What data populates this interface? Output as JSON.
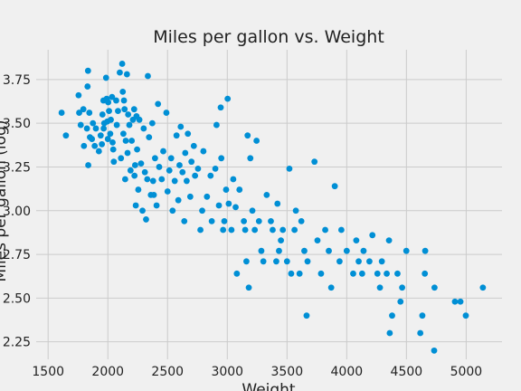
{
  "chart_data": {
    "type": "scatter",
    "title": "Miles per gallon vs. Weight",
    "xlabel": "Weight",
    "ylabel": "Miles per gallon (log)",
    "xlim": [
      1400,
      5300
    ],
    "ylim": [
      2.15,
      3.92
    ],
    "xticks": [
      1500,
      2000,
      2500,
      3000,
      3500,
      4000,
      4500,
      5000
    ],
    "yticks": [
      2.25,
      2.5,
      2.75,
      3.0,
      3.25,
      3.5,
      3.75
    ],
    "xtick_labels": [
      "1500",
      "2000",
      "2500",
      "3000",
      "3500",
      "4000",
      "4500",
      "5000"
    ],
    "ytick_labels": [
      "2.25",
      "2.50",
      "2.75",
      "3.00",
      "3.25",
      "3.50",
      "3.75"
    ],
    "grid": true,
    "series": [
      {
        "color": "#008fd5",
        "points": [
          [
            1613,
            3.56
          ],
          [
            1649,
            3.43
          ],
          [
            1755,
            3.66
          ],
          [
            1760,
            3.56
          ],
          [
            1773,
            3.49
          ],
          [
            1795,
            3.58
          ],
          [
            1800,
            3.37
          ],
          [
            1825,
            3.47
          ],
          [
            1830,
            3.71
          ],
          [
            1834,
            3.8
          ],
          [
            1836,
            3.26
          ],
          [
            1845,
            3.56
          ],
          [
            1850,
            3.42
          ],
          [
            1867,
            3.41
          ],
          [
            1875,
            3.5
          ],
          [
            1890,
            3.37
          ],
          [
            1900,
            3.47
          ],
          [
            1925,
            3.34
          ],
          [
            1940,
            3.43
          ],
          [
            1950,
            3.38
          ],
          [
            1955,
            3.55
          ],
          [
            1963,
            3.63
          ],
          [
            1965,
            3.47
          ],
          [
            1970,
            3.5
          ],
          [
            1985,
            3.76
          ],
          [
            1990,
            3.64
          ],
          [
            1995,
            3.51
          ],
          [
            2000,
            3.41
          ],
          [
            2003,
            3.62
          ],
          [
            2010,
            3.57
          ],
          [
            2020,
            3.44
          ],
          [
            2025,
            3.52
          ],
          [
            2035,
            3.65
          ],
          [
            2040,
            3.39
          ],
          [
            2045,
            3.35
          ],
          [
            2050,
            3.28
          ],
          [
            2070,
            3.63
          ],
          [
            2075,
            3.49
          ],
          [
            2085,
            3.57
          ],
          [
            2100,
            3.79
          ],
          [
            2110,
            3.3
          ],
          [
            2120,
            3.84
          ],
          [
            2125,
            3.68
          ],
          [
            2130,
            3.44
          ],
          [
            2135,
            3.63
          ],
          [
            2140,
            3.58
          ],
          [
            2145,
            3.18
          ],
          [
            2150,
            3.4
          ],
          [
            2160,
            3.78
          ],
          [
            2165,
            3.33
          ],
          [
            2170,
            3.55
          ],
          [
            2180,
            3.49
          ],
          [
            2190,
            3.23
          ],
          [
            2200,
            3.4
          ],
          [
            2210,
            3.52
          ],
          [
            2220,
            3.58
          ],
          [
            2223,
            3.2
          ],
          [
            2228,
            3.26
          ],
          [
            2234,
            3.03
          ],
          [
            2240,
            3.54
          ],
          [
            2245,
            3.35
          ],
          [
            2255,
            3.12
          ],
          [
            2264,
            3.52
          ],
          [
            2278,
            3.27
          ],
          [
            2290,
            3.0
          ],
          [
            2300,
            3.47
          ],
          [
            2310,
            3.22
          ],
          [
            2320,
            2.95
          ],
          [
            2330,
            3.18
          ],
          [
            2335,
            3.77
          ],
          [
            2345,
            3.42
          ],
          [
            2360,
            3.09
          ],
          [
            2372,
            3.5
          ],
          [
            2379,
            3.17
          ],
          [
            2385,
            3.09
          ],
          [
            2395,
            3.3
          ],
          [
            2408,
            3.03
          ],
          [
            2420,
            3.61
          ],
          [
            2430,
            3.25
          ],
          [
            2451,
            3.18
          ],
          [
            2464,
            3.34
          ],
          [
            2490,
            3.56
          ],
          [
            2500,
            3.11
          ],
          [
            2515,
            3.23
          ],
          [
            2530,
            3.3
          ],
          [
            2542,
            3.0
          ],
          [
            2560,
            3.17
          ],
          [
            2575,
            3.43
          ],
          [
            2590,
            3.06
          ],
          [
            2600,
            3.26
          ],
          [
            2610,
            3.48
          ],
          [
            2625,
            3.22
          ],
          [
            2640,
            2.94
          ],
          [
            2648,
            3.33
          ],
          [
            2660,
            3.17
          ],
          [
            2670,
            3.44
          ],
          [
            2690,
            3.08
          ],
          [
            2700,
            3.28
          ],
          [
            2720,
            3.37
          ],
          [
            2730,
            3.2
          ],
          [
            2755,
            3.24
          ],
          [
            2775,
            2.89
          ],
          [
            2790,
            3.0
          ],
          [
            2800,
            3.34
          ],
          [
            2830,
            3.08
          ],
          [
            2860,
            3.2
          ],
          [
            2870,
            2.94
          ],
          [
            2900,
            3.24
          ],
          [
            2910,
            3.49
          ],
          [
            2930,
            3.03
          ],
          [
            2945,
            3.59
          ],
          [
            2950,
            3.3
          ],
          [
            2965,
            2.89
          ],
          [
            2975,
            2.94
          ],
          [
            2990,
            3.12
          ],
          [
            3003,
            3.64
          ],
          [
            3012,
            3.04
          ],
          [
            3035,
            2.89
          ],
          [
            3050,
            3.18
          ],
          [
            3070,
            3.02
          ],
          [
            3080,
            2.64
          ],
          [
            3102,
            3.12
          ],
          [
            3139,
            2.94
          ],
          [
            3150,
            2.89
          ],
          [
            3160,
            2.71
          ],
          [
            3170,
            3.43
          ],
          [
            3180,
            2.56
          ],
          [
            3193,
            3.3
          ],
          [
            3210,
            3.0
          ],
          [
            3230,
            2.89
          ],
          [
            3245,
            3.4
          ],
          [
            3265,
            2.94
          ],
          [
            3285,
            2.77
          ],
          [
            3302,
            2.71
          ],
          [
            3330,
            3.09
          ],
          [
            3365,
            2.94
          ],
          [
            3380,
            2.89
          ],
          [
            3410,
            2.71
          ],
          [
            3420,
            3.04
          ],
          [
            3433,
            2.77
          ],
          [
            3449,
            2.83
          ],
          [
            3465,
            2.89
          ],
          [
            3500,
            2.71
          ],
          [
            3520,
            3.24
          ],
          [
            3535,
            2.64
          ],
          [
            3563,
            2.89
          ],
          [
            3574,
            3.0
          ],
          [
            3605,
            2.64
          ],
          [
            3620,
            2.94
          ],
          [
            3645,
            2.77
          ],
          [
            3664,
            2.4
          ],
          [
            3672,
            2.71
          ],
          [
            3730,
            3.28
          ],
          [
            3755,
            2.83
          ],
          [
            3785,
            2.64
          ],
          [
            3820,
            2.89
          ],
          [
            3850,
            2.77
          ],
          [
            3870,
            2.56
          ],
          [
            3900,
            3.14
          ],
          [
            3940,
            2.71
          ],
          [
            3955,
            2.89
          ],
          [
            4000,
            2.77
          ],
          [
            4054,
            2.64
          ],
          [
            4080,
            2.83
          ],
          [
            4100,
            2.71
          ],
          [
            4129,
            2.64
          ],
          [
            4141,
            2.77
          ],
          [
            4190,
            2.71
          ],
          [
            4215,
            2.86
          ],
          [
            4257,
            2.64
          ],
          [
            4278,
            2.56
          ],
          [
            4294,
            2.71
          ],
          [
            4335,
            2.64
          ],
          [
            4354,
            2.83
          ],
          [
            4360,
            2.3
          ],
          [
            4380,
            2.4
          ],
          [
            4425,
            2.64
          ],
          [
            4450,
            2.48
          ],
          [
            4464,
            2.56
          ],
          [
            4499,
            2.77
          ],
          [
            4616,
            2.3
          ],
          [
            4633,
            2.4
          ],
          [
            4654,
            2.64
          ],
          [
            4657,
            2.77
          ],
          [
            4732,
            2.2
          ],
          [
            4735,
            2.56
          ],
          [
            4906,
            2.48
          ],
          [
            4952,
            2.48
          ],
          [
            4997,
            2.4
          ],
          [
            5140,
            2.56
          ]
        ]
      }
    ]
  }
}
